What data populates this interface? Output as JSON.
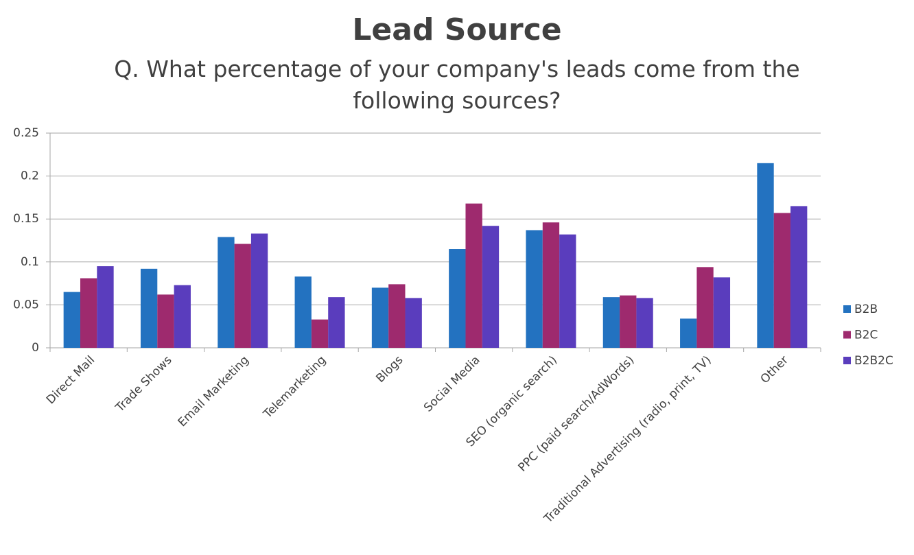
{
  "chart_data": {
    "type": "bar",
    "title": "Lead Source",
    "subtitle": "Q. What percentage of your company's leads come from the following sources?",
    "categories": [
      "Direct Mail",
      "Trade Shows",
      "Email Marketing",
      "Telemarketing",
      "Blogs",
      "Social Media",
      "SEO (organic search)",
      "PPC (paid search/AdWords)",
      "Traditional Advertising (radio, print, TV)",
      "Other"
    ],
    "series": [
      {
        "name": "B2B",
        "color": "#2372c0",
        "values": [
          0.065,
          0.092,
          0.129,
          0.083,
          0.07,
          0.115,
          0.137,
          0.059,
          0.034,
          0.215
        ]
      },
      {
        "name": "B2C",
        "color": "#9e2a6e",
        "values": [
          0.081,
          0.062,
          0.121,
          0.033,
          0.074,
          0.168,
          0.146,
          0.061,
          0.094,
          0.157
        ]
      },
      {
        "name": "B2B2C",
        "color": "#5a3dbd",
        "values": [
          0.095,
          0.073,
          0.133,
          0.059,
          0.058,
          0.142,
          0.132,
          0.058,
          0.082,
          0.165
        ]
      }
    ],
    "ylim": [
      0,
      0.25
    ],
    "yticks": [
      0,
      0.05,
      0.1,
      0.15,
      0.2,
      0.25
    ],
    "grid": true,
    "legend": "right"
  }
}
